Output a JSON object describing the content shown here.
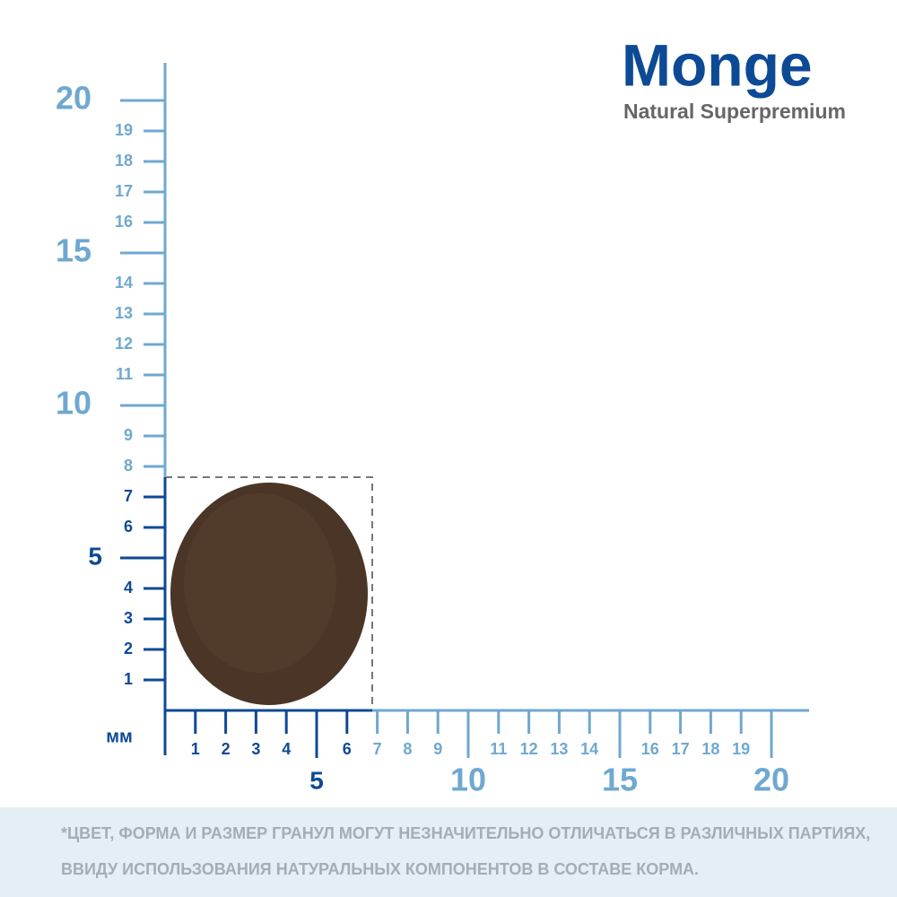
{
  "brand": {
    "name": "Monge",
    "tagline": "Natural Superpremium"
  },
  "scale": {
    "unit": "мм",
    "x_ticks": [
      1,
      2,
      3,
      4,
      5,
      6,
      7,
      8,
      9,
      10,
      11,
      12,
      13,
      14,
      15,
      16,
      17,
      18,
      19,
      20
    ],
    "y_ticks": [
      1,
      2,
      3,
      4,
      5,
      6,
      7,
      8,
      9,
      10,
      11,
      12,
      13,
      14,
      15,
      16,
      17,
      18,
      19,
      20
    ],
    "major_ticks": [
      5,
      10,
      15,
      20
    ]
  },
  "footer": {
    "lines": [
      "*ЦВЕТ, ФОРМА И РАЗМЕР ГРАНУЛ МОГУТ НЕЗНАЧИТЕЛЬНО ОТЛИЧАТЬСЯ В РАЗЛИЧНЫХ ПАРТИЯХ,",
      "ВВИДУ ИСПОЛЬЗОВАНИЯ НАТУРАЛЬНЫХ КОМПОНЕНТОВ В СОСТАВЕ КОРМА."
    ]
  }
}
